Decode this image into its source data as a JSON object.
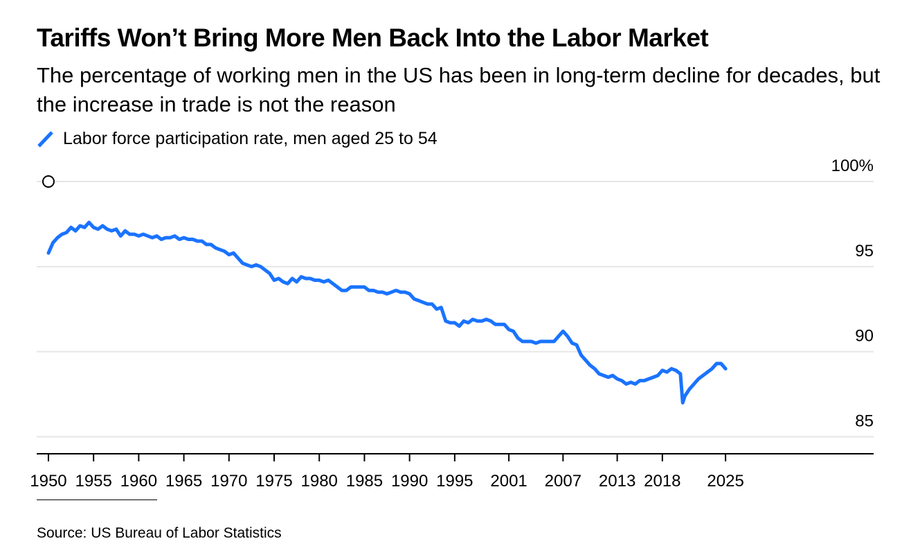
{
  "header": {
    "title": "Tariffs Won’t Bring More Men Back Into the Labor Market",
    "subtitle": "The percentage of working men in the US has been in long-term decline for decades, but the increase in trade is not the reason"
  },
  "legend": {
    "label": "Labor force participation rate, men aged 25 to 54"
  },
  "footer": {
    "source": "Source: US Bureau of Labor Statistics"
  },
  "colors": {
    "line": "#1a73ff",
    "grid": "#e6e6e6",
    "axis": "#000000"
  },
  "chart_data": {
    "type": "line",
    "title": "Tariffs Won’t Bring More Men Back Into the Labor Market",
    "xlabel": "",
    "ylabel": "",
    "ylim": [
      84,
      100
    ],
    "xlim": [
      1948.7,
      2041.4
    ],
    "grid": true,
    "legend_position": "top-left",
    "y_ticks": [
      {
        "value": 100,
        "label": "100%"
      },
      {
        "value": 95,
        "label": "95"
      },
      {
        "value": 90,
        "label": "90"
      },
      {
        "value": 85,
        "label": "85"
      }
    ],
    "x_ticks": [
      {
        "value": 1950,
        "label": "1950"
      },
      {
        "value": 1955,
        "label": "1955"
      },
      {
        "value": 1960,
        "label": "1960"
      },
      {
        "value": 1965,
        "label": "1965"
      },
      {
        "value": 1970,
        "label": "1970"
      },
      {
        "value": 1975,
        "label": "1975"
      },
      {
        "value": 1980,
        "label": "1980"
      },
      {
        "value": 1985,
        "label": "1985"
      },
      {
        "value": 1990,
        "label": "1990"
      },
      {
        "value": 1995,
        "label": "1995"
      },
      {
        "value": 2001,
        "label": "2001"
      },
      {
        "value": 2007,
        "label": "2007"
      },
      {
        "value": 2013,
        "label": "2013"
      },
      {
        "value": 2018,
        "label": "2018"
      },
      {
        "value": 2025,
        "label": "2025"
      }
    ],
    "series": [
      {
        "name": "Labor force participation rate, men aged 25 to 54",
        "x": [
          1950.0,
          1950.5,
          1951.0,
          1951.5,
          1952.0,
          1952.5,
          1953.0,
          1953.5,
          1954.0,
          1954.5,
          1955.0,
          1955.5,
          1956.0,
          1956.5,
          1957.0,
          1957.5,
          1958.0,
          1958.5,
          1959.0,
          1959.5,
          1960.0,
          1960.5,
          1961.0,
          1961.5,
          1962.0,
          1962.5,
          1963.0,
          1963.5,
          1964.0,
          1964.5,
          1965.0,
          1965.5,
          1966.0,
          1966.5,
          1967.0,
          1967.5,
          1968.0,
          1968.5,
          1969.0,
          1969.5,
          1970.0,
          1970.5,
          1971.0,
          1971.5,
          1972.0,
          1972.5,
          1973.0,
          1973.5,
          1974.0,
          1974.5,
          1975.0,
          1975.5,
          1976.0,
          1976.5,
          1977.0,
          1977.5,
          1978.0,
          1978.5,
          1979.0,
          1979.5,
          1980.0,
          1980.5,
          1981.0,
          1981.5,
          1982.0,
          1982.5,
          1983.0,
          1983.5,
          1984.0,
          1984.5,
          1985.0,
          1985.5,
          1986.0,
          1986.5,
          1987.0,
          1987.5,
          1988.0,
          1988.5,
          1989.0,
          1989.5,
          1990.0,
          1990.5,
          1991.0,
          1991.5,
          1992.0,
          1992.5,
          1993.0,
          1993.5,
          1994.0,
          1994.5,
          1995.0,
          1995.5,
          1996.0,
          1996.5,
          1997.0,
          1997.5,
          1998.0,
          1998.5,
          1999.0,
          1999.5,
          2000.0,
          2000.5,
          2001.0,
          2001.5,
          2002.0,
          2002.5,
          2003.0,
          2003.5,
          2004.0,
          2004.5,
          2005.0,
          2005.5,
          2006.0,
          2006.5,
          2007.0,
          2007.5,
          2008.0,
          2008.5,
          2009.0,
          2009.5,
          2010.0,
          2010.5,
          2011.0,
          2011.5,
          2012.0,
          2012.5,
          2013.0,
          2013.5,
          2014.0,
          2014.5,
          2015.0,
          2015.5,
          2016.0,
          2016.5,
          2017.0,
          2017.5,
          2018.0,
          2018.5,
          2019.0,
          2019.5,
          2020.0,
          2020.25,
          2020.5,
          2020.75,
          2021.0,
          2021.5,
          2022.0,
          2022.5,
          2023.0,
          2023.5,
          2024.0,
          2024.5,
          2025.0
        ],
        "values": [
          95.8,
          96.4,
          96.7,
          96.9,
          97.0,
          97.3,
          97.1,
          97.4,
          97.3,
          97.6,
          97.3,
          97.2,
          97.4,
          97.2,
          97.1,
          97.2,
          96.8,
          97.1,
          96.9,
          96.9,
          96.8,
          96.9,
          96.8,
          96.7,
          96.8,
          96.6,
          96.7,
          96.7,
          96.8,
          96.6,
          96.7,
          96.6,
          96.6,
          96.5,
          96.5,
          96.3,
          96.3,
          96.1,
          96.0,
          95.9,
          95.7,
          95.8,
          95.5,
          95.2,
          95.1,
          95.0,
          95.1,
          95.0,
          94.8,
          94.6,
          94.2,
          94.3,
          94.1,
          94.0,
          94.3,
          94.1,
          94.4,
          94.3,
          94.3,
          94.2,
          94.2,
          94.1,
          94.2,
          94.0,
          93.8,
          93.6,
          93.6,
          93.8,
          93.8,
          93.8,
          93.8,
          93.6,
          93.6,
          93.5,
          93.5,
          93.4,
          93.5,
          93.6,
          93.5,
          93.5,
          93.4,
          93.1,
          93.0,
          92.9,
          92.8,
          92.8,
          92.5,
          92.6,
          91.8,
          91.7,
          91.7,
          91.5,
          91.8,
          91.7,
          91.9,
          91.8,
          91.8,
          91.9,
          91.8,
          91.6,
          91.6,
          91.6,
          91.3,
          91.2,
          90.8,
          90.6,
          90.6,
          90.6,
          90.5,
          90.6,
          90.6,
          90.6,
          90.6,
          90.9,
          91.2,
          90.9,
          90.5,
          90.4,
          89.8,
          89.5,
          89.2,
          89.0,
          88.7,
          88.6,
          88.5,
          88.6,
          88.4,
          88.3,
          88.1,
          88.2,
          88.1,
          88.3,
          88.3,
          88.4,
          88.5,
          88.6,
          88.9,
          88.8,
          89.0,
          88.9,
          88.7,
          87.0,
          87.4,
          87.6,
          87.8,
          88.1,
          88.4,
          88.6,
          88.8,
          89.0,
          89.3,
          89.3,
          89.0
        ]
      }
    ]
  }
}
